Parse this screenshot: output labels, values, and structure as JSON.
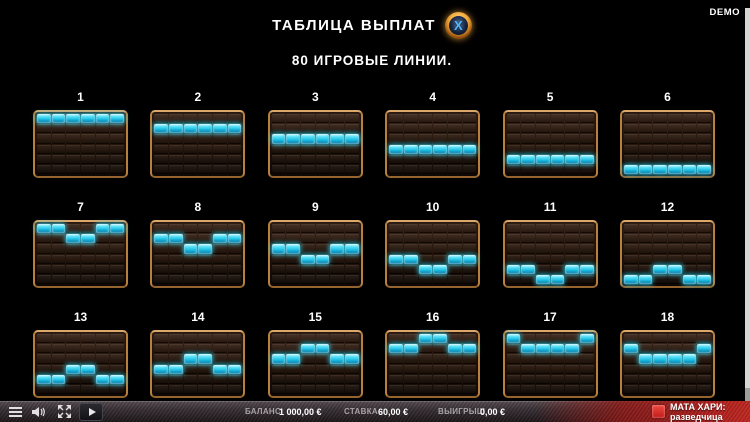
{
  "header": {
    "demo_label": "DEMO",
    "title": "ТАБЛИЦА ВЫПЛАТ",
    "close_glyph": "X",
    "subtitle": "80 ИГРОВЫЕ ЛИНИИ."
  },
  "paylines": {
    "grid_cols": 6,
    "grid_rows": 6,
    "lines": [
      {
        "number": "1",
        "cells": [
          0,
          0,
          0,
          0,
          0,
          0
        ]
      },
      {
        "number": "2",
        "cells": [
          1,
          1,
          1,
          1,
          1,
          1
        ]
      },
      {
        "number": "3",
        "cells": [
          2,
          2,
          2,
          2,
          2,
          2
        ]
      },
      {
        "number": "4",
        "cells": [
          3,
          3,
          3,
          3,
          3,
          3
        ]
      },
      {
        "number": "5",
        "cells": [
          4,
          4,
          4,
          4,
          4,
          4
        ]
      },
      {
        "number": "6",
        "cells": [
          5,
          5,
          5,
          5,
          5,
          5
        ]
      },
      {
        "number": "7",
        "cells": [
          0,
          0,
          1,
          1,
          0,
          0
        ]
      },
      {
        "number": "8",
        "cells": [
          1,
          1,
          2,
          2,
          1,
          1
        ]
      },
      {
        "number": "9",
        "cells": [
          2,
          2,
          3,
          3,
          2,
          2
        ]
      },
      {
        "number": "10",
        "cells": [
          3,
          3,
          4,
          4,
          3,
          3
        ]
      },
      {
        "number": "11",
        "cells": [
          4,
          4,
          5,
          5,
          4,
          4
        ]
      },
      {
        "number": "12",
        "cells": [
          5,
          5,
          4,
          4,
          5,
          5
        ]
      },
      {
        "number": "13",
        "cells": [
          4,
          4,
          3,
          3,
          4,
          4
        ]
      },
      {
        "number": "14",
        "cells": [
          3,
          3,
          2,
          2,
          3,
          3
        ]
      },
      {
        "number": "15",
        "cells": [
          2,
          2,
          1,
          1,
          2,
          2
        ]
      },
      {
        "number": "16",
        "cells": [
          1,
          1,
          0,
          0,
          1,
          1
        ]
      },
      {
        "number": "17",
        "cells": [
          0,
          1,
          1,
          1,
          1,
          0
        ]
      },
      {
        "number": "18",
        "cells": [
          1,
          2,
          2,
          2,
          2,
          1
        ]
      }
    ]
  },
  "statusbar": {
    "balance_label": "БАЛАНС",
    "balance_value": "1 000,00 €",
    "bet_label": "СТАВКА",
    "bet_value": "60,00 €",
    "win_label": "ВЫИГРЫШ",
    "win_value": "0,00 €",
    "game_title": "МАТА ХАРИ: разведчица",
    "icons": [
      "menu-icon",
      "speaker-icon",
      "fullscreen-icon",
      "play-icon",
      "provider-badge-icon"
    ]
  },
  "colors": {
    "background": "#000000",
    "payline_highlight": "#2fd4ee",
    "grid_border": "#c0854e",
    "close_ring_gold": "#f4ae3e",
    "close_x_blue": "#57b4f6",
    "statusbar_red": "#c62a22",
    "text_primary": "#ffffff",
    "text_label_gray": "#a9a2a6"
  }
}
